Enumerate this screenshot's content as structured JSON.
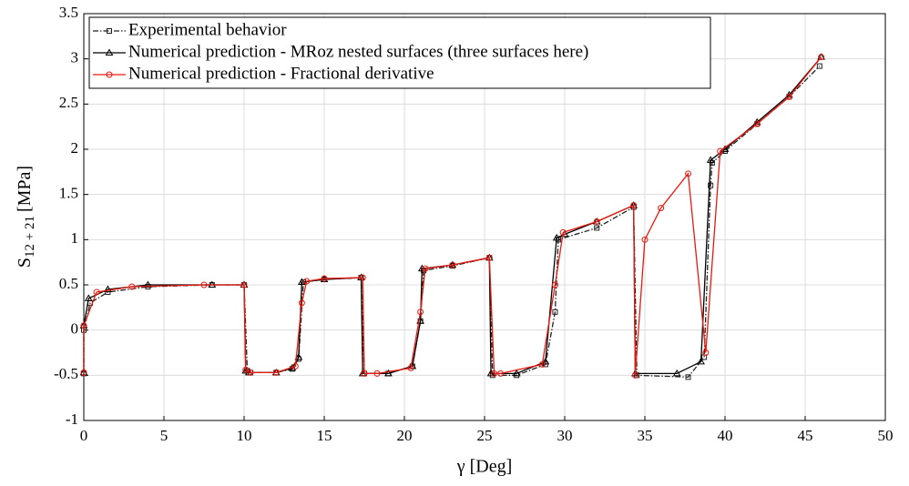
{
  "chart_data": {
    "type": "line",
    "xlabel": "γ [Deg]",
    "ylabel": {
      "symbol": "S",
      "subscript": "12 + 21",
      "unit": "[MPa]"
    },
    "xlim": [
      0,
      50
    ],
    "xticks": [
      0,
      5,
      10,
      15,
      20,
      25,
      30,
      35,
      40,
      45,
      50
    ],
    "ylim": [
      -1,
      3.5
    ],
    "yticks": [
      -1,
      -0.5,
      0,
      0.5,
      1,
      1.5,
      2,
      2.5,
      3,
      3.5
    ],
    "grid": true,
    "legend": "upper left",
    "series": [
      {
        "name": "Experimental behavior",
        "color": "#222222",
        "dash": "dashdot",
        "marker": "square",
        "x": [
          0,
          0,
          0.4,
          1.5,
          4,
          8,
          10,
          10.2,
          10.4,
          12,
          13,
          13.4,
          13.7,
          15,
          17.3,
          17.5,
          19,
          20.5,
          21,
          21.2,
          23,
          25.3,
          25.5,
          27,
          28.8,
          29.4,
          29.6,
          32,
          34.3,
          34.5,
          37.7,
          38.7,
          39.1,
          39.2,
          40,
          42,
          44,
          45.9
        ],
        "values": [
          -0.48,
          0,
          0.3,
          0.42,
          0.48,
          0.5,
          0.5,
          -0.45,
          -0.47,
          -0.47,
          -0.43,
          -0.32,
          0.53,
          0.56,
          0.58,
          -0.48,
          -0.48,
          -0.4,
          0.1,
          0.66,
          0.71,
          0.8,
          -0.5,
          -0.5,
          -0.38,
          0.2,
          1.0,
          1.13,
          1.36,
          -0.5,
          -0.52,
          -0.3,
          1.6,
          1.85,
          1.98,
          2.28,
          2.58,
          2.92
        ]
      },
      {
        "name": "Numerical prediction - MRoz nested surfaces (three surfaces here)",
        "color": "#000000",
        "dash": "solid",
        "marker": "triangle",
        "x": [
          0,
          0,
          0.3,
          1.5,
          4,
          8,
          10,
          10.1,
          10.3,
          12,
          13,
          13.4,
          13.6,
          15,
          17.3,
          17.4,
          19,
          20.5,
          21,
          21.1,
          23,
          25.3,
          25.4,
          27,
          28.8,
          29.5,
          30,
          32,
          34.3,
          34.4,
          37,
          38.5,
          39.1,
          40,
          42,
          44,
          46
        ],
        "values": [
          -0.47,
          0.05,
          0.35,
          0.45,
          0.5,
          0.5,
          0.5,
          -0.45,
          -0.47,
          -0.47,
          -0.42,
          -0.3,
          0.53,
          0.56,
          0.58,
          -0.48,
          -0.48,
          -0.4,
          0.1,
          0.68,
          0.72,
          0.8,
          -0.48,
          -0.48,
          -0.35,
          1.02,
          1.06,
          1.2,
          1.38,
          -0.48,
          -0.48,
          -0.35,
          1.88,
          2.0,
          2.3,
          2.6,
          3.02
        ]
      },
      {
        "name": "Numerical prediction - Fractional derivative",
        "color": "#e8190f",
        "dash": "solid",
        "marker": "circle",
        "x": [
          0,
          0,
          0.8,
          3,
          7.5,
          10,
          10.1,
          10.4,
          12,
          13.2,
          13.6,
          13.9,
          15,
          17.4,
          17.5,
          18.3,
          20.4,
          21,
          21.3,
          23,
          25.3,
          25.6,
          26,
          28.6,
          29.4,
          29.9,
          32,
          34.3,
          34.4,
          35,
          36,
          37.7,
          38.8,
          39.7,
          42,
          44,
          46
        ],
        "values": [
          -0.47,
          0.05,
          0.42,
          0.48,
          0.5,
          0.5,
          -0.44,
          -0.47,
          -0.47,
          -0.4,
          0.3,
          0.54,
          0.57,
          0.58,
          -0.48,
          -0.48,
          -0.42,
          0.2,
          0.68,
          0.72,
          0.8,
          -0.48,
          -0.48,
          -0.38,
          0.5,
          1.08,
          1.2,
          1.38,
          -0.5,
          1.0,
          1.35,
          1.73,
          -0.25,
          1.98,
          2.28,
          2.58,
          3.02
        ]
      }
    ]
  }
}
